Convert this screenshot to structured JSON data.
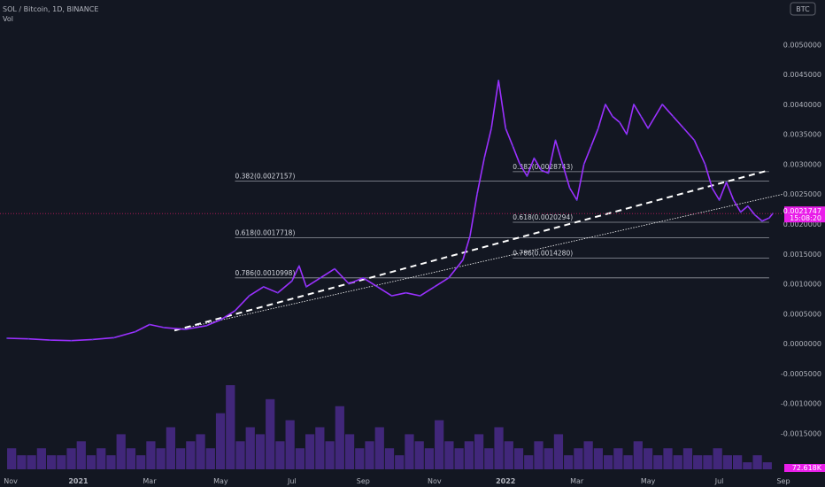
{
  "header": {
    "title": "SOL / Bitcoin, 1D, BINANCE",
    "volume_label": "Vol",
    "currency_badge": "BTC"
  },
  "colors": {
    "background": "#131722",
    "price_line": "#9b30ff",
    "price_line_alt": "#5b3fd6",
    "volume_bar": "#4a2a8a",
    "fib_line": "#9598a1",
    "trendline": "#ffffff",
    "current_price_badge": "#e91ee9",
    "current_price_line": "#c2185b"
  },
  "chart_data": {
    "type": "line",
    "symbol": "SOL / Bitcoin",
    "interval": "1D",
    "exchange": "BINANCE",
    "x_ticks": [
      "Nov",
      "2021",
      "Mar",
      "May",
      "Jul",
      "Sep",
      "Nov",
      "2022",
      "Mar",
      "May",
      "Jul",
      "Sep"
    ],
    "y_ticks": [
      "0.0050000",
      "0.0045000",
      "0.0040000",
      "0.0035000",
      "0.0030000",
      "0.0025000",
      "0.0020000",
      "0.0015000",
      "0.0010000",
      "0.0005000",
      "0.0000000",
      "-0.0005000",
      "-0.0010000",
      "-0.0015000"
    ],
    "ylim": [
      -0.0021,
      0.0053
    ],
    "xlim_months": [
      -0.1,
      10.9
    ],
    "price_series": {
      "name": "SOL/BTC",
      "points": [
        [
          0,
          9e-05
        ],
        [
          0.3,
          8e-05
        ],
        [
          0.6,
          6e-05
        ],
        [
          0.9,
          5e-05
        ],
        [
          1.2,
          7e-05
        ],
        [
          1.5,
          0.0001
        ],
        [
          1.8,
          0.0002
        ],
        [
          2.0,
          0.00032
        ],
        [
          2.2,
          0.00027
        ],
        [
          2.5,
          0.00024
        ],
        [
          2.8,
          0.0003
        ],
        [
          3.0,
          0.0004
        ],
        [
          3.2,
          0.00055
        ],
        [
          3.4,
          0.0008
        ],
        [
          3.6,
          0.00095
        ],
        [
          3.8,
          0.00085
        ],
        [
          4.0,
          0.00105
        ],
        [
          4.1,
          0.0013
        ],
        [
          4.2,
          0.00095
        ],
        [
          4.4,
          0.0011
        ],
        [
          4.6,
          0.00125
        ],
        [
          4.8,
          0.001
        ],
        [
          5.0,
          0.0011
        ],
        [
          5.2,
          0.00095
        ],
        [
          5.4,
          0.0008
        ],
        [
          5.6,
          0.00085
        ],
        [
          5.8,
          0.0008
        ],
        [
          6.0,
          0.00095
        ],
        [
          6.2,
          0.0011
        ],
        [
          6.4,
          0.0014
        ],
        [
          6.5,
          0.0018
        ],
        [
          6.6,
          0.0025
        ],
        [
          6.7,
          0.0031
        ],
        [
          6.8,
          0.0036
        ],
        [
          6.9,
          0.0044
        ],
        [
          7.0,
          0.0036
        ],
        [
          7.1,
          0.0033
        ],
        [
          7.2,
          0.003
        ],
        [
          7.3,
          0.0028
        ],
        [
          7.4,
          0.0031
        ],
        [
          7.5,
          0.0029
        ],
        [
          7.6,
          0.00285
        ],
        [
          7.7,
          0.0034
        ],
        [
          7.8,
          0.003
        ],
        [
          7.9,
          0.0026
        ],
        [
          8.0,
          0.0024
        ],
        [
          8.1,
          0.003
        ],
        [
          8.2,
          0.0033
        ],
        [
          8.3,
          0.0036
        ],
        [
          8.4,
          0.004
        ],
        [
          8.5,
          0.0038
        ],
        [
          8.6,
          0.0037
        ],
        [
          8.7,
          0.0035
        ],
        [
          8.8,
          0.004
        ],
        [
          8.9,
          0.0038
        ],
        [
          9.0,
          0.0036
        ],
        [
          9.2,
          0.004
        ],
        [
          9.35,
          0.0038
        ],
        [
          9.5,
          0.0036
        ],
        [
          9.65,
          0.0034
        ],
        [
          9.8,
          0.003
        ],
        [
          9.9,
          0.0026
        ],
        [
          10.0,
          0.0024
        ],
        [
          10.1,
          0.0027
        ],
        [
          10.2,
          0.0024
        ],
        [
          10.3,
          0.0022
        ],
        [
          10.4,
          0.0023
        ],
        [
          10.5,
          0.00215
        ],
        [
          10.6,
          0.00205
        ],
        [
          10.7,
          0.0021
        ],
        [
          10.75,
          0.0021747
        ]
      ]
    },
    "volume_series": {
      "name": "Vol",
      "relative_values": [
        3,
        2,
        2,
        3,
        2,
        2,
        3,
        4,
        2,
        3,
        2,
        5,
        3,
        2,
        4,
        3,
        6,
        3,
        4,
        5,
        3,
        8,
        12,
        4,
        6,
        5,
        10,
        4,
        7,
        3,
        5,
        6,
        4,
        9,
        5,
        3,
        4,
        6,
        3,
        2,
        5,
        4,
        3,
        7,
        4,
        3,
        4,
        5,
        3,
        6,
        4,
        3,
        2,
        4,
        3,
        5,
        2,
        3,
        4,
        3,
        2,
        3,
        2,
        4,
        3,
        2,
        3,
        2,
        3,
        2,
        2,
        3,
        2,
        2,
        1,
        2,
        1
      ]
    },
    "fib_levels": [
      {
        "label": "0.382(0.0028743)",
        "value": 0.0028743,
        "x_start": 7.1,
        "x_end": 10.7
      },
      {
        "label": "0.382(0.0027157)",
        "value": 0.0027157,
        "x_start": 3.2,
        "x_end": 10.7
      },
      {
        "label": "0.618(0.0020294)",
        "value": 0.0020294,
        "x_start": 7.1,
        "x_end": 10.7
      },
      {
        "label": "0.618(0.0017718)",
        "value": 0.0017718,
        "x_start": 3.2,
        "x_end": 10.7
      },
      {
        "label": "0.786(0.0014280)",
        "value": 0.001428,
        "x_start": 7.1,
        "x_end": 10.7
      },
      {
        "label": "0.786(0.0010998)",
        "value": 0.0010998,
        "x_start": 3.2,
        "x_end": 10.7
      }
    ],
    "trendlines": [
      {
        "style": "dashed",
        "from": [
          2.35,
          0.00022
        ],
        "to": [
          10.7,
          0.0029
        ]
      },
      {
        "style": "dotted",
        "from": [
          2.35,
          0.00022
        ],
        "to": [
          10.9,
          0.0025
        ]
      }
    ],
    "current_price": {
      "value": "0.0021747",
      "countdown": "15:08:20",
      "y": 0.0021747
    },
    "last_volume_label": "72.618K"
  }
}
